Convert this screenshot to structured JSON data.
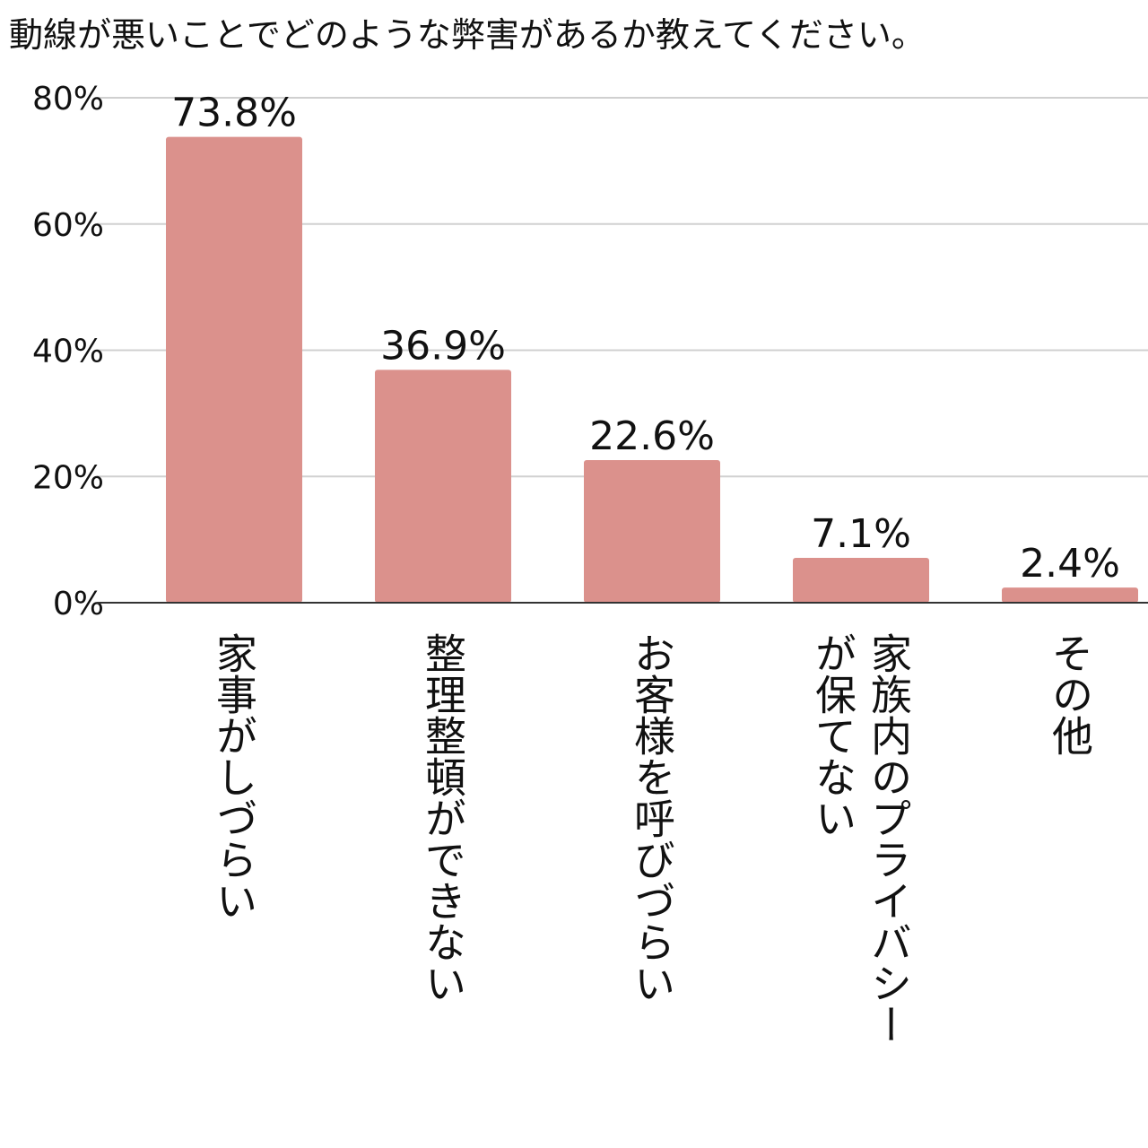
{
  "chart_data": {
    "type": "bar",
    "title": "動線が悪いことでどのような弊害があるか教えてください。",
    "categories": [
      [
        "家事がしづらい"
      ],
      [
        "整理整頓ができない"
      ],
      [
        "お客様を呼びづらい"
      ],
      [
        "家族内のプライバシー",
        "が保てない"
      ],
      [
        "その他"
      ]
    ],
    "values": [
      73.8,
      36.9,
      22.6,
      7.1,
      2.4
    ],
    "data_labels": [
      "73.8%",
      "36.9%",
      "22.6%",
      "7.1%",
      "2.4%"
    ],
    "y_ticks": [
      {
        "value": 0,
        "label": "0%"
      },
      {
        "value": 20,
        "label": "20%"
      },
      {
        "value": 40,
        "label": "40%"
      },
      {
        "value": 60,
        "label": "60%"
      },
      {
        "value": 80,
        "label": "80%"
      }
    ],
    "ylim": [
      0,
      80
    ],
    "grid": true,
    "legend": "none",
    "colors": {
      "bar": "#db918c",
      "grid": "#d0d0d0",
      "axis": "#333333",
      "text": "#111111"
    }
  }
}
